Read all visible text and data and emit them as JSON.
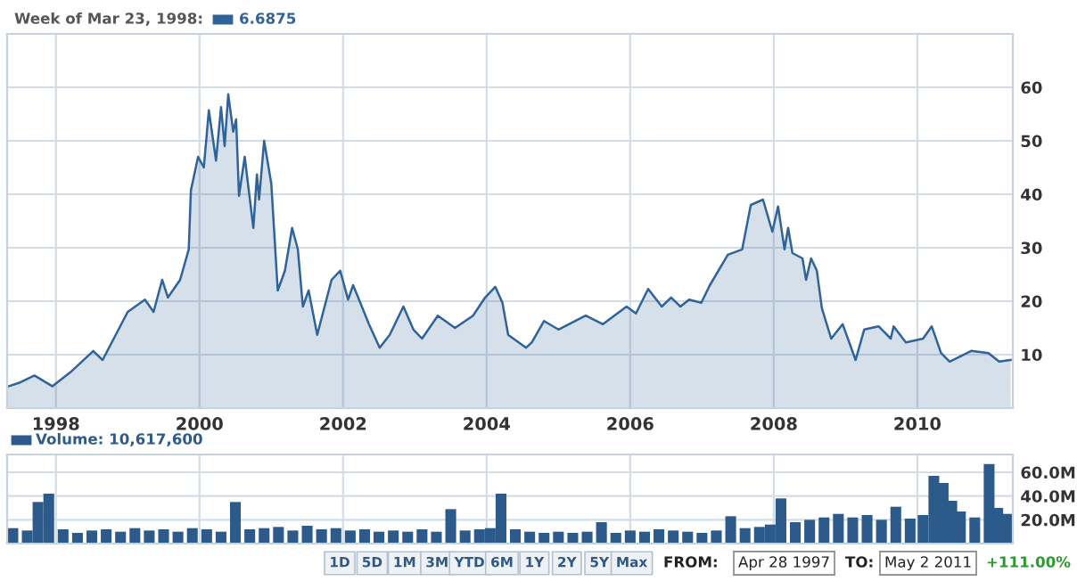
{
  "chart_data": [
    {
      "type": "area",
      "title": "Week of Mar 23, 1998:",
      "annotations": [
        "6.6875"
      ],
      "series": [
        {
          "color": "#2f6399",
          "x": [
            1997.32,
            1997.5,
            1997.7,
            1997.95,
            1998.2,
            1998.52,
            1998.65,
            1999.0,
            1999.24,
            1999.36,
            1999.48,
            1999.56,
            1999.73,
            1999.85,
            1999.88,
            1999.98,
            2000.06,
            2000.13,
            2000.23,
            2000.3,
            2000.35,
            2000.4,
            2000.47,
            2000.51,
            2000.55,
            2000.63,
            2000.75,
            2000.8,
            2000.83,
            2000.9,
            2001.0,
            2001.09,
            2001.19,
            2001.29,
            2001.37,
            2001.44,
            2001.52,
            2001.64,
            2001.84,
            2001.96,
            2002.07,
            2002.14,
            2002.24,
            2002.36,
            2002.51,
            2002.65,
            2002.84,
            2002.98,
            2003.1,
            2003.32,
            2003.56,
            2003.81,
            2003.98,
            2004.12,
            2004.22,
            2004.3,
            2004.55,
            2004.63,
            2004.8,
            2005.0,
            2005.38,
            2005.62,
            2005.95,
            2006.08,
            2006.25,
            2006.44,
            2006.57,
            2006.7,
            2006.82,
            2006.99,
            2007.11,
            2007.36,
            2007.56,
            2007.68,
            2007.85,
            2007.98,
            2008.06,
            2008.15,
            2008.2,
            2008.26,
            2008.4,
            2008.45,
            2008.52,
            2008.6,
            2008.67,
            2008.8,
            2008.96,
            2009.14,
            2009.26,
            2009.46,
            2009.63,
            2009.67,
            2009.84,
            2010.08,
            2010.2,
            2010.33,
            2010.45,
            2010.75,
            2010.99,
            2011.14,
            2011.3
          ],
          "values": [
            4,
            4.8,
            6.1,
            4.1,
            6.7,
            10.7,
            9,
            18,
            20.3,
            18,
            24,
            20.7,
            24,
            29.7,
            40.7,
            47,
            45,
            55.7,
            46.3,
            56.3,
            49,
            58.7,
            51.7,
            54,
            39.7,
            47,
            33.7,
            43.7,
            39,
            50,
            42,
            22,
            25.7,
            33.7,
            29.7,
            19,
            22,
            13.7,
            24,
            25.7,
            20.3,
            23,
            19.7,
            15.7,
            11.3,
            13.7,
            19,
            14.7,
            13,
            17.3,
            15,
            17.3,
            20.7,
            22.7,
            19.7,
            13.7,
            11.3,
            12.3,
            16.3,
            14.7,
            17.3,
            15.7,
            19,
            17.7,
            22.3,
            19,
            20.7,
            19,
            20.3,
            19.7,
            23,
            28.7,
            29.7,
            38,
            39,
            33,
            37.7,
            29.7,
            33.7,
            29,
            28,
            24,
            28,
            25.7,
            18.7,
            13,
            15.7,
            9,
            14.7,
            15.3,
            13,
            15.3,
            12.3,
            13,
            15.3,
            10.3,
            8.7,
            10.7,
            10.3,
            8.7,
            9
          ]
        }
      ],
      "xlim": [
        1997.32,
        2011.33
      ],
      "ylim": [
        0,
        70
      ],
      "xticks": [
        1998,
        2000,
        2002,
        2004,
        2006,
        2008,
        2010
      ],
      "yticks": [
        10,
        20,
        30,
        40,
        50,
        60
      ],
      "grid": true
    },
    {
      "type": "bar",
      "title": "Volume: 10,617,600",
      "annotations": [
        "1D",
        "5D",
        "1M",
        "3M",
        "YTD",
        "6M",
        "1Y",
        "2Y",
        "5Y",
        "Max",
        "FROM:",
        "Apr 28 1997",
        "TO:",
        "May 2 2011",
        "+111.00%"
      ],
      "series": [
        {
          "color": "#2c5a8a",
          "x": [
            1997.4,
            1997.6,
            1997.75,
            1997.9,
            1998.1,
            1998.3,
            1998.5,
            1998.7,
            1998.9,
            1999.1,
            1999.3,
            1999.5,
            1999.7,
            1999.9,
            2000.1,
            2000.3,
            2000.5,
            2000.7,
            2000.9,
            2001.1,
            2001.3,
            2001.5,
            2001.7,
            2001.9,
            2002.1,
            2002.3,
            2002.5,
            2002.7,
            2002.9,
            2003.1,
            2003.3,
            2003.5,
            2003.7,
            2003.9,
            2004.05,
            2004.2,
            2004.4,
            2004.6,
            2004.8,
            2005.0,
            2005.2,
            2005.4,
            2005.6,
            2005.8,
            2006.0,
            2006.2,
            2006.4,
            2006.6,
            2006.8,
            2007.0,
            2007.2,
            2007.4,
            2007.6,
            2007.8,
            2007.95,
            2008.1,
            2008.3,
            2008.5,
            2008.7,
            2008.9,
            2009.1,
            2009.3,
            2009.5,
            2009.7,
            2009.9,
            2010.08,
            2010.23,
            2010.36,
            2010.48,
            2010.6,
            2010.8,
            2011.0,
            2011.12,
            2011.25
          ],
          "values": [
            13,
            11,
            35,
            42,
            12,
            9,
            11,
            12,
            10,
            13,
            11,
            12,
            10,
            13,
            12,
            10,
            35,
            12,
            13,
            14,
            11,
            15,
            12,
            13,
            11,
            12,
            10,
            11,
            10,
            12,
            10,
            29,
            11,
            12,
            13,
            42,
            12,
            10,
            9,
            10,
            9,
            10,
            18,
            9,
            11,
            10,
            12,
            11,
            10,
            9,
            11,
            23,
            13,
            14,
            16,
            38,
            18,
            20,
            22,
            25,
            22,
            24,
            20,
            31,
            21,
            24,
            57,
            51,
            36,
            27,
            22,
            67,
            30,
            25
          ]
        }
      ],
      "xlim": [
        1997.32,
        2011.33
      ],
      "ylim": [
        0,
        75
      ],
      "xticks": [
        1998,
        2000,
        2002,
        2004,
        2006,
        2008,
        2010
      ],
      "yticks": [
        {
          "value": 20,
          "label": "20.0M"
        },
        {
          "value": 40,
          "label": "40.0M"
        },
        {
          "value": 60,
          "label": "60.0M"
        }
      ],
      "grid": true,
      "tick_labels": "y"
    }
  ]
}
